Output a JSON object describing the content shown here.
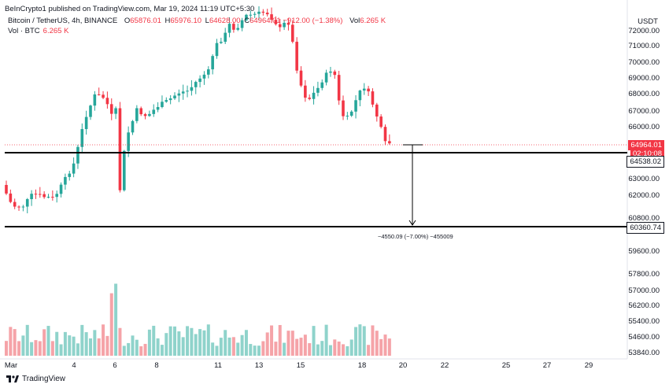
{
  "topbar": {
    "text": "BeInCrypto1 published on TradingView.com, Mar 19, 2024 11:19 UTC+5:30"
  },
  "legend": {
    "symbol": "Bitcoin / TetherUS, 4h, BINANCE",
    "open_label": "O",
    "open": "65876.01",
    "high_label": "H",
    "high": "65976.10",
    "low_label": "L",
    "low": "64628.00",
    "close_label": "C",
    "close": "64964.01",
    "change": "−912.00 (−1.38%)",
    "vol_label": "Vol",
    "vol": "6.265 K",
    "vol_series": "Vol · BTC",
    "vol_series_value": "6.265 K"
  },
  "axis": {
    "currency": "USDT",
    "labels": [
      "72000.00",
      "71000.00",
      "70000.00",
      "69000.00",
      "68000.00",
      "67000.00",
      "66000.00",
      "63000.00",
      "62000.00",
      "60800.00",
      "59600.00",
      "57800.00",
      "57000.00",
      "56200.00",
      "55400.00",
      "54600.00",
      "53840.00"
    ],
    "price_tag": "64964.01",
    "countdown": "02:10:08",
    "support_tag": "64538.02",
    "target_tag": "60360.74"
  },
  "x_axis": {
    "labels": [
      "Mar",
      "4",
      "6",
      "8",
      "11",
      "13",
      "15",
      "18",
      "20",
      "22",
      "25",
      "27",
      "29"
    ]
  },
  "measure": {
    "text": "−4550.09 (−7.00%) −455009"
  },
  "footer": {
    "brand": "TradingView"
  },
  "colors": {
    "up": "#26a69a",
    "down": "#f23645",
    "vol_up": "#8fd3cb",
    "vol_down": "#f5a3a8",
    "line": "#000000"
  }
}
